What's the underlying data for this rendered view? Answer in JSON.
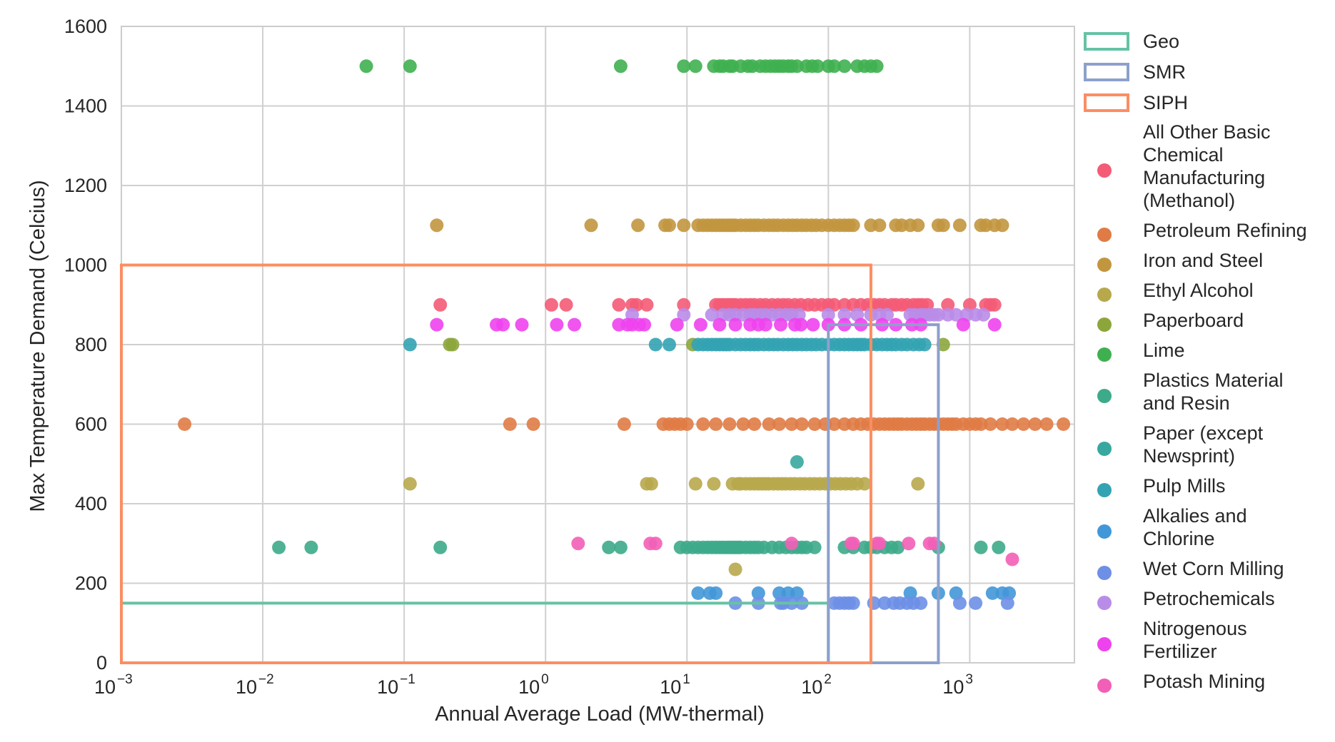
{
  "chart_data": {
    "type": "scatter",
    "title": "",
    "xlabel": "Annual Average Load (MW-thermal)",
    "ylabel": "Max Temperature Demand (Celcius)",
    "x_scale": "log",
    "xlim": [
      0.001,
      5500
    ],
    "ylim": [
      0,
      1600
    ],
    "x_ticks": [
      {
        "value": 0.001,
        "base": "10",
        "exp": "−3"
      },
      {
        "value": 0.01,
        "base": "10",
        "exp": "−2"
      },
      {
        "value": 0.1,
        "base": "10",
        "exp": "−1"
      },
      {
        "value": 1,
        "base": "10",
        "exp": "0"
      },
      {
        "value": 10,
        "base": "10",
        "exp": "1"
      },
      {
        "value": 100,
        "base": "10",
        "exp": "2"
      },
      {
        "value": 1000,
        "base": "10",
        "exp": "3"
      }
    ],
    "y_ticks": [
      0,
      200,
      400,
      600,
      800,
      1000,
      1200,
      1400,
      1600
    ],
    "grid": true,
    "legend_position": "right outside",
    "regions": [
      {
        "name": "Geo",
        "color": "#66c2a5",
        "x": [
          0.001,
          100
        ],
        "y": [
          0,
          150
        ]
      },
      {
        "name": "SMR",
        "color": "#8da0cb",
        "x": [
          100,
          600
        ],
        "y": [
          0,
          850
        ]
      },
      {
        "name": "SIPH",
        "color": "#fc8d62",
        "x": [
          0.001,
          200
        ],
        "y": [
          0,
          1000
        ]
      }
    ],
    "series": [
      {
        "name": "All Other Basic Chemical Manufacturing (Methanol)",
        "color": "#f45b76",
        "x": [
          0.18,
          1.1,
          1.4,
          3.3,
          4.1,
          4.4,
          5.2,
          9.5,
          16,
          17,
          18,
          19,
          20,
          21,
          22,
          24,
          26,
          28,
          30,
          33,
          36,
          40,
          44,
          48,
          52,
          58,
          64,
          72,
          80,
          90,
          100,
          110,
          130,
          150,
          170,
          190,
          210,
          230,
          250,
          280,
          300,
          330,
          360,
          400,
          430,
          460,
          500,
          700,
          1000,
          1300,
          1400,
          1500
        ],
        "y": [
          900,
          900,
          900,
          900,
          900,
          900,
          900,
          900,
          900,
          900,
          900,
          900,
          900,
          900,
          900,
          900,
          900,
          900,
          900,
          900,
          900,
          900,
          900,
          900,
          900,
          900,
          900,
          900,
          900,
          900,
          900,
          900,
          900,
          900,
          900,
          900,
          900,
          900,
          900,
          900,
          900,
          900,
          900,
          900,
          900,
          900,
          900,
          900,
          900,
          900,
          900,
          900
        ]
      },
      {
        "name": "Petroleum Refining",
        "color": "#e07b45",
        "x": [
          0.0028,
          0.56,
          0.82,
          3.6,
          6.8,
          7.5,
          8.2,
          9,
          10,
          13,
          16,
          20,
          25,
          30,
          38,
          45,
          55,
          65,
          80,
          95,
          110,
          130,
          150,
          170,
          190,
          210,
          230,
          250,
          270,
          290,
          310,
          330,
          360,
          390,
          420,
          450,
          480,
          520,
          560,
          600,
          650,
          700,
          750,
          800,
          900,
          1000,
          1100,
          1200,
          1400,
          1700,
          2000,
          2400,
          2900,
          3500,
          4600
        ],
        "y": [
          600,
          600,
          600,
          600,
          600,
          600,
          600,
          600,
          600,
          600,
          600,
          600,
          600,
          600,
          600,
          600,
          600,
          600,
          600,
          600,
          600,
          600,
          600,
          600,
          600,
          600,
          600,
          600,
          600,
          600,
          600,
          600,
          600,
          600,
          600,
          600,
          600,
          600,
          600,
          600,
          600,
          600,
          600,
          600,
          600,
          600,
          600,
          600,
          600,
          600,
          600,
          600,
          600,
          600,
          600
        ]
      },
      {
        "name": "Iron and Steel",
        "color": "#c2963f",
        "x": [
          0.17,
          2.1,
          4.5,
          7,
          7.5,
          9.5,
          12,
          13,
          14,
          15,
          16,
          17,
          18,
          19,
          20,
          21,
          22,
          24,
          26,
          28,
          30,
          32,
          35,
          38,
          41,
          44,
          48,
          52,
          56,
          60,
          65,
          70,
          76,
          82,
          90,
          100,
          110,
          120,
          130,
          140,
          150,
          200,
          230,
          300,
          330,
          380,
          430,
          600,
          650,
          850,
          1200,
          1300,
          1500,
          1700
        ],
        "y": [
          1100,
          1100,
          1100,
          1100,
          1100,
          1100,
          1100,
          1100,
          1100,
          1100,
          1100,
          1100,
          1100,
          1100,
          1100,
          1100,
          1100,
          1100,
          1100,
          1100,
          1100,
          1100,
          1100,
          1100,
          1100,
          1100,
          1100,
          1100,
          1100,
          1100,
          1100,
          1100,
          1100,
          1100,
          1100,
          1100,
          1100,
          1100,
          1100,
          1100,
          1100,
          1100,
          1100,
          1100,
          1100,
          1100,
          1100,
          1100,
          1100,
          1100,
          1100,
          1100,
          1100,
          1100
        ]
      },
      {
        "name": "Ethyl Alcohol",
        "color": "#b8a84c",
        "x": [
          0.11,
          5.2,
          5.6,
          11.5,
          15.5,
          21,
          23,
          24,
          26,
          28,
          30,
          32,
          34,
          36,
          38,
          41,
          44,
          47,
          50,
          54,
          58,
          63,
          68,
          74,
          80,
          87,
          95,
          103,
          112,
          122,
          133,
          145,
          160,
          180,
          430,
          22
        ],
        "y": [
          450,
          450,
          450,
          450,
          450,
          450,
          450,
          450,
          450,
          450,
          450,
          450,
          450,
          450,
          450,
          450,
          450,
          450,
          450,
          450,
          450,
          450,
          450,
          450,
          450,
          450,
          450,
          450,
          450,
          450,
          450,
          450,
          450,
          450,
          450,
          235
        ]
      },
      {
        "name": "Paperboard",
        "color": "#8ca63c",
        "x": [
          0.21,
          0.22,
          11,
          650
        ],
        "y": [
          800,
          800,
          800,
          800
        ]
      },
      {
        "name": "Lime",
        "color": "#3fb050",
        "x": [
          0.054,
          0.11,
          3.4,
          9.5,
          11.5,
          15.5,
          17,
          18,
          20,
          21,
          24,
          27,
          29,
          33,
          36,
          39,
          42,
          45,
          48,
          52,
          55,
          60,
          70,
          77,
          84,
          100,
          110,
          130,
          160,
          180,
          200,
          220
        ],
        "y": [
          1500,
          1500,
          1500,
          1500,
          1500,
          1500,
          1500,
          1500,
          1500,
          1500,
          1500,
          1500,
          1500,
          1500,
          1500,
          1500,
          1500,
          1500,
          1500,
          1500,
          1500,
          1500,
          1500,
          1500,
          1500,
          1500,
          1500,
          1500,
          1500,
          1500,
          1500,
          1500
        ]
      },
      {
        "name": "Plastics Material and Resin",
        "color": "#3daa8a",
        "x": [
          0.013,
          0.022,
          0.18,
          2.8,
          3.4,
          9,
          10,
          11,
          12,
          13,
          14,
          15,
          16,
          17,
          18,
          19,
          20,
          21,
          22,
          23,
          24,
          26,
          28,
          30,
          32,
          35,
          40,
          45,
          50,
          55,
          60,
          65,
          70,
          80,
          130,
          150,
          180,
          200,
          220,
          250,
          280,
          310,
          600,
          1200,
          1600
        ],
        "y": [
          290,
          290,
          290,
          290,
          290,
          290,
          290,
          290,
          290,
          290,
          290,
          290,
          290,
          290,
          290,
          290,
          290,
          290,
          290,
          290,
          290,
          290,
          290,
          290,
          290,
          290,
          290,
          290,
          290,
          290,
          290,
          290,
          290,
          290,
          290,
          290,
          290,
          290,
          290,
          290,
          290,
          290,
          290,
          290,
          290
        ]
      },
      {
        "name": "Paper (except Newsprint)",
        "color": "#37a89f",
        "x": [
          60
        ],
        "y": [
          505
        ]
      },
      {
        "name": "Pulp Mills",
        "color": "#33a3b3",
        "x": [
          0.11,
          6,
          7.5,
          12,
          13,
          14,
          15,
          16,
          17,
          18,
          19,
          20,
          22,
          24,
          26,
          28,
          30,
          32,
          35,
          38,
          41,
          44,
          48,
          52,
          56,
          60,
          65,
          70,
          76,
          82,
          90,
          100,
          110,
          120,
          130,
          140,
          150,
          160,
          170,
          180,
          200,
          220,
          240,
          260,
          280,
          300,
          330,
          360,
          400,
          440,
          480
        ],
        "y": [
          800,
          800,
          800,
          800,
          800,
          800,
          800,
          800,
          800,
          800,
          800,
          800,
          800,
          800,
          800,
          800,
          800,
          800,
          800,
          800,
          800,
          800,
          800,
          800,
          800,
          800,
          800,
          800,
          800,
          800,
          800,
          800,
          800,
          800,
          800,
          800,
          800,
          800,
          800,
          800,
          800,
          800,
          800,
          800,
          800,
          800,
          800,
          800,
          800,
          800,
          800
        ]
      },
      {
        "name": "Alkalies and Chlorine",
        "color": "#4297d8",
        "x": [
          12,
          14.5,
          16,
          32,
          45,
          52,
          60,
          380,
          600,
          800,
          1450,
          1700,
          1900
        ],
        "y": [
          175,
          175,
          175,
          175,
          175,
          175,
          175,
          175,
          175,
          175,
          175,
          175,
          175
        ]
      },
      {
        "name": "Wet Corn Milling",
        "color": "#6d8fe6",
        "x": [
          22,
          32,
          46,
          48,
          55,
          65,
          110,
          120,
          130,
          140,
          150,
          210,
          250,
          290,
          320,
          360,
          400,
          450,
          850,
          1100,
          1850
        ],
        "y": [
          150,
          150,
          150,
          150,
          150,
          150,
          150,
          150,
          150,
          150,
          150,
          150,
          150,
          150,
          150,
          150,
          150,
          150,
          150,
          150,
          150
        ]
      },
      {
        "name": "Petrochemicals",
        "color": "#b98ce8",
        "x": [
          9.5,
          4.1,
          15,
          18,
          20,
          22,
          25,
          28,
          30,
          33,
          36,
          40,
          45,
          50,
          55,
          62,
          100,
          130,
          160,
          200,
          230,
          260,
          380,
          410,
          450,
          480,
          520,
          560,
          600,
          700,
          800,
          950,
          1100,
          1250
        ],
        "y": [
          875,
          875,
          875,
          875,
          875,
          875,
          875,
          875,
          875,
          875,
          875,
          875,
          875,
          875,
          875,
          875,
          875,
          875,
          875,
          875,
          875,
          875,
          875,
          875,
          875,
          875,
          875,
          875,
          875,
          875,
          875,
          875,
          875,
          875
        ]
      },
      {
        "name": "Nitrogenous Fertilizer",
        "color": "#ee42ee",
        "x": [
          0.17,
          0.45,
          0.5,
          0.68,
          1.2,
          1.6,
          3.3,
          3.8,
          4.1,
          4.6,
          5,
          8.5,
          12.5,
          17,
          22,
          28,
          32,
          36,
          46,
          58,
          64,
          78,
          100,
          130,
          170,
          240,
          300,
          390,
          450,
          900,
          1500
        ],
        "y": [
          850,
          850,
          850,
          850,
          850,
          850,
          850,
          850,
          850,
          850,
          850,
          850,
          850,
          850,
          850,
          850,
          850,
          850,
          850,
          850,
          850,
          850,
          850,
          850,
          850,
          850,
          850,
          850,
          850,
          850,
          850
        ]
      },
      {
        "name": "Potash Mining",
        "color": "#f25fb7",
        "x": [
          1.7,
          5.5,
          6,
          55,
          145,
          150,
          220,
          230,
          370,
          520,
          560,
          2000
        ],
        "y": [
          300,
          300,
          300,
          300,
          300,
          300,
          300,
          300,
          300,
          300,
          300,
          260
        ]
      }
    ]
  },
  "legend": {
    "regions": [
      {
        "label": "Geo",
        "color": "#66c2a5"
      },
      {
        "label": "SMR",
        "color": "#8da0cb"
      },
      {
        "label": "SIPH",
        "color": "#fc8d62"
      }
    ],
    "points": [
      {
        "lines": [
          "All Other Basic",
          "Chemical",
          "Manufacturing",
          "(Methanol)"
        ],
        "color": "#f45b76"
      },
      {
        "lines": [
          "Petroleum Refining"
        ],
        "color": "#e07b45"
      },
      {
        "lines": [
          "Iron and Steel"
        ],
        "color": "#c2963f"
      },
      {
        "lines": [
          "Ethyl Alcohol"
        ],
        "color": "#b8a84c"
      },
      {
        "lines": [
          "Paperboard"
        ],
        "color": "#8ca63c"
      },
      {
        "lines": [
          "Lime"
        ],
        "color": "#3fb050"
      },
      {
        "lines": [
          "Plastics Material",
          "and Resin"
        ],
        "color": "#3daa8a"
      },
      {
        "lines": [
          "Paper (except",
          "Newsprint)"
        ],
        "color": "#37a89f"
      },
      {
        "lines": [
          "Pulp Mills"
        ],
        "color": "#33a3b3"
      },
      {
        "lines": [
          "Alkalies and",
          "Chlorine"
        ],
        "color": "#4297d8"
      },
      {
        "lines": [
          "Wet Corn Milling"
        ],
        "color": "#6d8fe6"
      },
      {
        "lines": [
          "Petrochemicals"
        ],
        "color": "#b98ce8"
      },
      {
        "lines": [
          "Nitrogenous",
          "Fertilizer"
        ],
        "color": "#ee42ee"
      },
      {
        "lines": [
          "Potash Mining"
        ],
        "color": "#f25fb7"
      }
    ]
  }
}
